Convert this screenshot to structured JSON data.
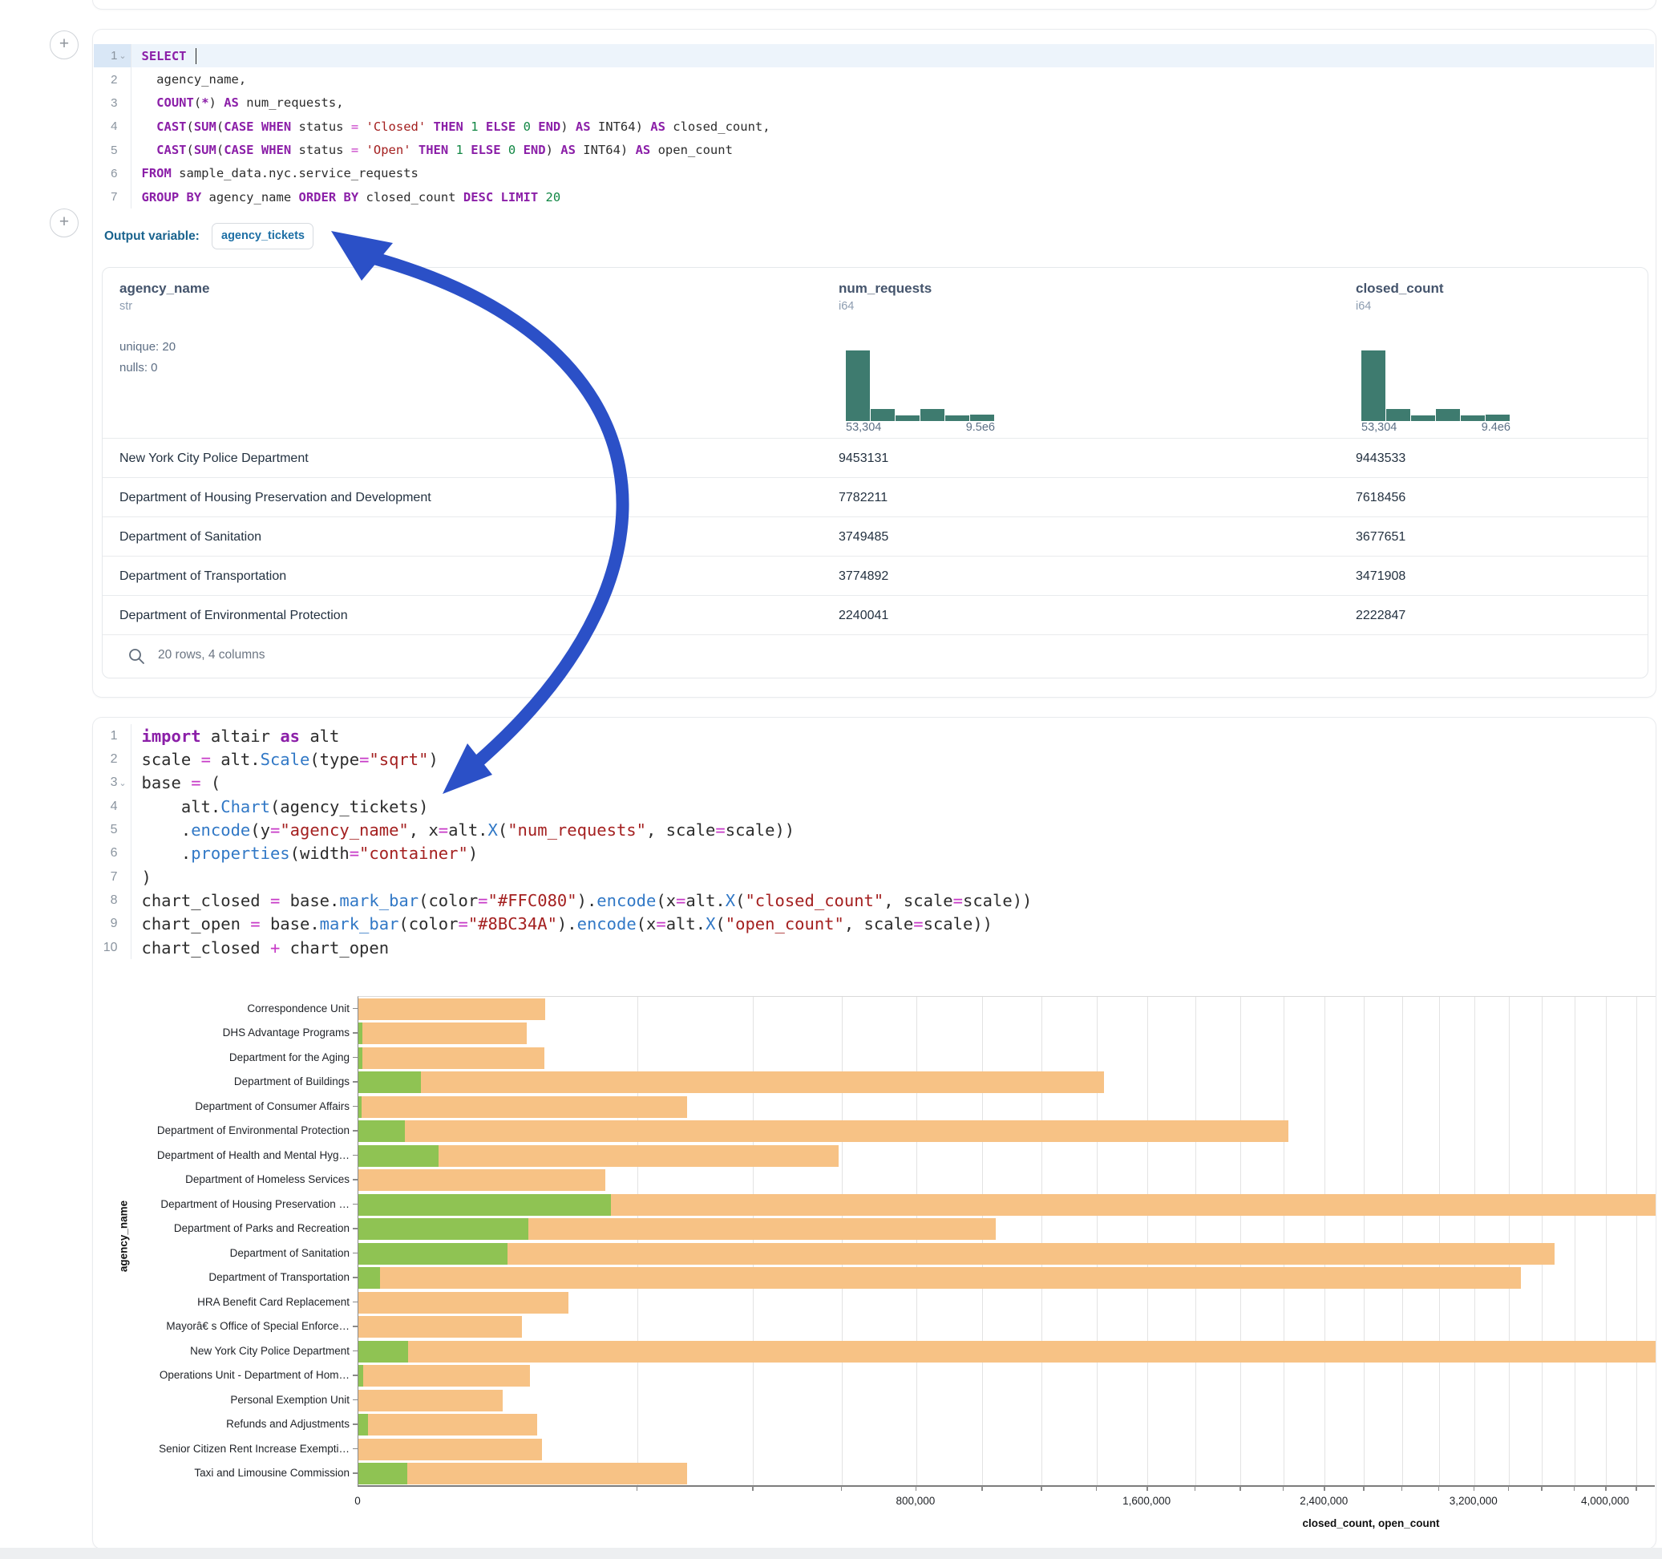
{
  "colors": {
    "accent_arrow": "#2B50C7",
    "hist_bar": "#3e7b6f",
    "closed_bar": "#F7C285",
    "open_bar": "#8FC353",
    "active_line_bg": "#edf4fb"
  },
  "add_buttons": {
    "plus": "+"
  },
  "sql_cell": {
    "lines": [
      {
        "n": "1",
        "chevron": true,
        "active": true,
        "cursor": true,
        "tokens": [
          [
            "kw",
            "SELECT"
          ],
          [
            "pl",
            " "
          ]
        ]
      },
      {
        "n": "2",
        "tokens": [
          [
            "pl",
            "  agency_name,"
          ]
        ]
      },
      {
        "n": "3",
        "tokens": [
          [
            "pl",
            "  "
          ],
          [
            "kw",
            "COUNT"
          ],
          [
            "pl",
            "("
          ],
          [
            "kw",
            "*"
          ],
          [
            "pl",
            ") "
          ],
          [
            "kw",
            "AS"
          ],
          [
            "pl",
            " num_requests,"
          ]
        ]
      },
      {
        "n": "4",
        "tokens": [
          [
            "pl",
            "  "
          ],
          [
            "kw",
            "CAST"
          ],
          [
            "pl",
            "("
          ],
          [
            "kw",
            "SUM"
          ],
          [
            "pl",
            "("
          ],
          [
            "kw",
            "CASE"
          ],
          [
            "pl",
            " "
          ],
          [
            "kw",
            "WHEN"
          ],
          [
            "pl",
            " status "
          ],
          [
            "op",
            "="
          ],
          [
            "pl",
            " "
          ],
          [
            "str",
            "'Closed'"
          ],
          [
            "pl",
            " "
          ],
          [
            "kw",
            "THEN"
          ],
          [
            "pl",
            " "
          ],
          [
            "num",
            "1"
          ],
          [
            "pl",
            " "
          ],
          [
            "kw",
            "ELSE"
          ],
          [
            "pl",
            " "
          ],
          [
            "num",
            "0"
          ],
          [
            "pl",
            " "
          ],
          [
            "kw",
            "END"
          ],
          [
            "pl",
            ") "
          ],
          [
            "kw",
            "AS"
          ],
          [
            "pl",
            " INT64) "
          ],
          [
            "kw",
            "AS"
          ],
          [
            "pl",
            " closed_count,"
          ]
        ]
      },
      {
        "n": "5",
        "tokens": [
          [
            "pl",
            "  "
          ],
          [
            "kw",
            "CAST"
          ],
          [
            "pl",
            "("
          ],
          [
            "kw",
            "SUM"
          ],
          [
            "pl",
            "("
          ],
          [
            "kw",
            "CASE"
          ],
          [
            "pl",
            " "
          ],
          [
            "kw",
            "WHEN"
          ],
          [
            "pl",
            " status "
          ],
          [
            "op",
            "="
          ],
          [
            "pl",
            " "
          ],
          [
            "str",
            "'Open'"
          ],
          [
            "pl",
            " "
          ],
          [
            "kw",
            "THEN"
          ],
          [
            "pl",
            " "
          ],
          [
            "num",
            "1"
          ],
          [
            "pl",
            " "
          ],
          [
            "kw",
            "ELSE"
          ],
          [
            "pl",
            " "
          ],
          [
            "num",
            "0"
          ],
          [
            "pl",
            " "
          ],
          [
            "kw",
            "END"
          ],
          [
            "pl",
            ") "
          ],
          [
            "kw",
            "AS"
          ],
          [
            "pl",
            " INT64) "
          ],
          [
            "kw",
            "AS"
          ],
          [
            "pl",
            " open_count"
          ]
        ]
      },
      {
        "n": "6",
        "tokens": [
          [
            "kw",
            "FROM"
          ],
          [
            "pl",
            " sample_data.nyc.service_requests"
          ]
        ]
      },
      {
        "n": "7",
        "tokens": [
          [
            "kw",
            "GROUP"
          ],
          [
            "pl",
            " "
          ],
          [
            "kw",
            "BY"
          ],
          [
            "pl",
            " agency_name "
          ],
          [
            "kw",
            "ORDER"
          ],
          [
            "pl",
            " "
          ],
          [
            "kw",
            "BY"
          ],
          [
            "pl",
            " closed_count "
          ],
          [
            "kw",
            "DESC"
          ],
          [
            "pl",
            " "
          ],
          [
            "kw",
            "LIMIT"
          ],
          [
            "pl",
            " "
          ],
          [
            "num",
            "20"
          ]
        ]
      }
    ]
  },
  "output_variable": {
    "label": "Output variable:",
    "value": "agency_tickets"
  },
  "table": {
    "columns": [
      {
        "name": "agency_name",
        "type": "str",
        "stats": [
          "unique: 20",
          "nulls: 0"
        ]
      },
      {
        "name": "num_requests",
        "type": "i64",
        "hist": {
          "bars": [
            1,
            0.17,
            0.08,
            0.17,
            0.08,
            0.09
          ],
          "min": "53,304",
          "max": "9.5e6"
        }
      },
      {
        "name": "closed_count",
        "type": "i64",
        "hist": {
          "bars": [
            1,
            0.17,
            0.08,
            0.17,
            0.08,
            0.09
          ],
          "min": "53,304",
          "max": "9.4e6"
        }
      }
    ],
    "rows": [
      [
        "New York City Police Department",
        "9453131",
        "9443533"
      ],
      [
        "Department of Housing Preservation and Development",
        "7782211",
        "7618456"
      ],
      [
        "Department of Sanitation",
        "3749485",
        "3677651"
      ],
      [
        "Department of Transportation",
        "3774892",
        "3471908"
      ],
      [
        "Department of Environmental Protection",
        "2240041",
        "2222847"
      ]
    ],
    "footer": "20 rows, 4 columns"
  },
  "python_cell": {
    "lines": [
      {
        "n": "1",
        "tokens": [
          [
            "kw",
            "import"
          ],
          [
            "pl",
            " altair "
          ],
          [
            "kw",
            "as"
          ],
          [
            "pl",
            " alt"
          ]
        ]
      },
      {
        "n": "2",
        "tokens": [
          [
            "pl",
            "scale "
          ],
          [
            "op",
            "="
          ],
          [
            "pl",
            " alt."
          ],
          [
            "fn",
            "Scale"
          ],
          [
            "pl",
            "(type"
          ],
          [
            "op",
            "="
          ],
          [
            "str",
            "\"sqrt\""
          ],
          [
            "pl",
            ")"
          ]
        ]
      },
      {
        "n": "3",
        "chevron": true,
        "tokens": [
          [
            "pl",
            "base "
          ],
          [
            "op",
            "="
          ],
          [
            "pl",
            " ("
          ]
        ]
      },
      {
        "n": "4",
        "tokens": [
          [
            "pl",
            "    alt."
          ],
          [
            "fn",
            "Chart"
          ],
          [
            "pl",
            "(agency_tickets)"
          ]
        ]
      },
      {
        "n": "5",
        "tokens": [
          [
            "pl",
            "    ."
          ],
          [
            "fn",
            "encode"
          ],
          [
            "pl",
            "(y"
          ],
          [
            "op",
            "="
          ],
          [
            "str",
            "\"agency_name\""
          ],
          [
            "pl",
            ", x"
          ],
          [
            "op",
            "="
          ],
          [
            "pl",
            "alt."
          ],
          [
            "fn",
            "X"
          ],
          [
            "pl",
            "("
          ],
          [
            "str",
            "\"num_requests\""
          ],
          [
            "pl",
            ", scale"
          ],
          [
            "op",
            "="
          ],
          [
            "pl",
            "scale))"
          ]
        ]
      },
      {
        "n": "6",
        "tokens": [
          [
            "pl",
            "    ."
          ],
          [
            "fn",
            "properties"
          ],
          [
            "pl",
            "(width"
          ],
          [
            "op",
            "="
          ],
          [
            "str",
            "\"container\""
          ],
          [
            "pl",
            ")"
          ]
        ]
      },
      {
        "n": "7",
        "tokens": [
          [
            "pl",
            ")"
          ]
        ]
      },
      {
        "n": "8",
        "tokens": [
          [
            "pl",
            "chart_closed "
          ],
          [
            "op",
            "="
          ],
          [
            "pl",
            " base."
          ],
          [
            "fn",
            "mark_bar"
          ],
          [
            "pl",
            "(color"
          ],
          [
            "op",
            "="
          ],
          [
            "str",
            "\"#FFC080\""
          ],
          [
            "pl",
            ")."
          ],
          [
            "fn",
            "encode"
          ],
          [
            "pl",
            "(x"
          ],
          [
            "op",
            "="
          ],
          [
            "pl",
            "alt."
          ],
          [
            "fn",
            "X"
          ],
          [
            "pl",
            "("
          ],
          [
            "str",
            "\"closed_count\""
          ],
          [
            "pl",
            ", scale"
          ],
          [
            "op",
            "="
          ],
          [
            "pl",
            "scale))"
          ]
        ]
      },
      {
        "n": "9",
        "tokens": [
          [
            "pl",
            "chart_open "
          ],
          [
            "op",
            "="
          ],
          [
            "pl",
            " base."
          ],
          [
            "fn",
            "mark_bar"
          ],
          [
            "pl",
            "(color"
          ],
          [
            "op",
            "="
          ],
          [
            "str",
            "\"#8BC34A\""
          ],
          [
            "pl",
            ")."
          ],
          [
            "fn",
            "encode"
          ],
          [
            "pl",
            "(x"
          ],
          [
            "op",
            "="
          ],
          [
            "pl",
            "alt."
          ],
          [
            "fn",
            "X"
          ],
          [
            "pl",
            "("
          ],
          [
            "str",
            "\"open_count\""
          ],
          [
            "pl",
            ", scale"
          ],
          [
            "op",
            "="
          ],
          [
            "pl",
            "scale))"
          ]
        ]
      },
      {
        "n": "10",
        "tokens": [
          [
            "pl",
            "chart_closed "
          ],
          [
            "op",
            "+"
          ],
          [
            "pl",
            " chart_open"
          ]
        ]
      }
    ]
  },
  "chart_data": {
    "type": "bar",
    "orientation": "horizontal",
    "x_scale": "sqrt",
    "grid": true,
    "title": "",
    "xlabel": "closed_count, open_count",
    "ylabel": "agency_name",
    "x_minor_step": 200000,
    "x_ticks": [
      {
        "v": 0,
        "label": "0"
      },
      {
        "v": 800000,
        "label": "800,000"
      },
      {
        "v": 1600000,
        "label": "1,600,000"
      },
      {
        "v": 2400000,
        "label": "2,400,000"
      },
      {
        "v": 3200000,
        "label": "3,200,000"
      },
      {
        "v": 4000000,
        "label": "4,000,000"
      }
    ],
    "categories": [
      "Correspondence Unit",
      "DHS Advantage Programs",
      "Department for the Aging",
      "Department of Buildings",
      "Department of Consumer Affairs",
      "Department of Environmental Protection",
      "Department of Health and Mental Hyg…",
      "Department of Homeless Services",
      "Department of Housing Preservation …",
      "Department of Parks and Recreation",
      "Department of Sanitation",
      "Department of Transportation",
      "HRA Benefit Card Replacement",
      "Mayorâ€ s Office of Special Enforce…",
      "New York City Police Department",
      "Operations Unit - Department of Hom…",
      "Personal Exemption Unit",
      "Refunds and Adjustments",
      "Senior Citizen Rent Increase Exempti…",
      "Taxi and Limousine Commission"
    ],
    "series": [
      {
        "name": "closed_count",
        "color": "#F7C285",
        "values": [
          90000,
          73000,
          89000,
          1430000,
          278000,
          2222847,
          593000,
          157000,
          7618456,
          1044000,
          3677651,
          3471908,
          113000,
          69000,
          9443533,
          76000,
          53304,
          82000,
          87000,
          278000
        ]
      },
      {
        "name": "open_count",
        "color": "#8FC353",
        "values": [
          0,
          40,
          40,
          10000,
          30,
          5500,
          16500,
          0,
          164000,
          74000,
          57000,
          1200,
          0,
          0,
          6400,
          60,
          0,
          240,
          0,
          6100
        ]
      }
    ]
  }
}
